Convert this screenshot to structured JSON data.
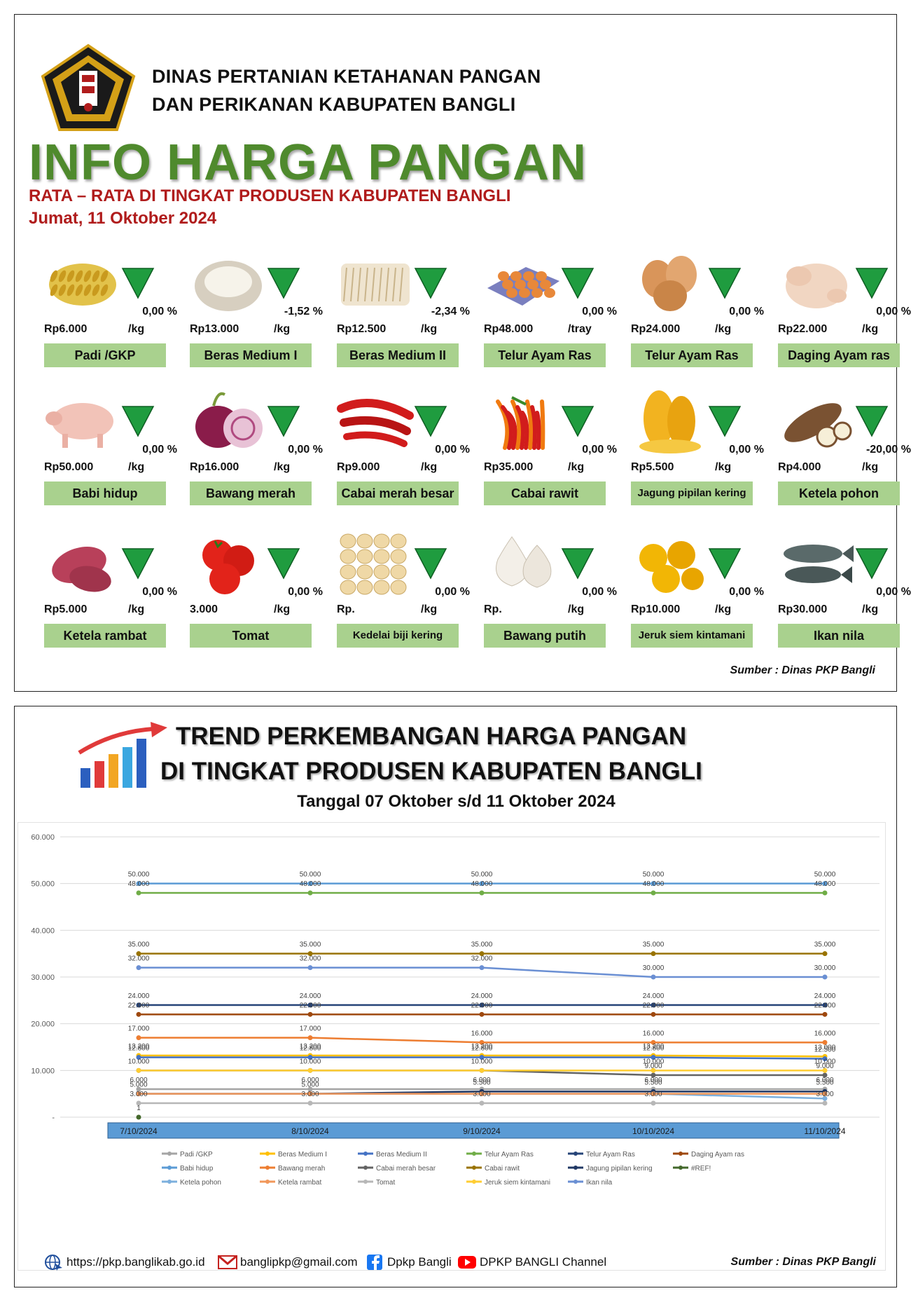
{
  "header": {
    "agency_line1": "DINAS PERTANIAN KETAHANAN PANGAN",
    "agency_line2": "DAN PERIKANAN KABUPATEN BANGLI",
    "title": "INFO HARGA PANGAN",
    "subtitle": "RATA – RATA DI TINGKAT PRODUSEN KABUPATEN BANGLI",
    "date": "Jumat, 11 Oktober 2024"
  },
  "colors": {
    "name_bg": "#a9d18e",
    "triangle": "#1f9c3f",
    "title_green": "#4f8a2d",
    "accent_red": "#b01c1c"
  },
  "items": [
    {
      "name": "Padi /GKP",
      "price": "Rp6.000",
      "unit": "/kg",
      "pct": "0,00  %",
      "icon": "grain-icon"
    },
    {
      "name": "Beras Medium I",
      "price": "Rp13.000",
      "unit": "/kg",
      "pct": "-1,52  %",
      "icon": "rice-icon"
    },
    {
      "name": "Beras Medium II",
      "price": "Rp12.500",
      "unit": "/kg",
      "pct": "-2,34  %",
      "icon": "rice-sack-icon"
    },
    {
      "name": "Telur Ayam Ras",
      "price": "Rp48.000",
      "unit": "/tray",
      "pct": "0,00  %",
      "icon": "egg-tray-icon"
    },
    {
      "name": "Telur Ayam Ras",
      "price": "Rp24.000",
      "unit": "/kg",
      "pct": "0,00  %",
      "icon": "eggs-icon"
    },
    {
      "name": "Daging Ayam ras",
      "price": "Rp22.000",
      "unit": "/kg",
      "pct": "0,00  %",
      "icon": "chicken-icon"
    },
    {
      "name": "Babi hidup",
      "price": "Rp50.000",
      "unit": "/kg",
      "pct": "0,00  %",
      "icon": "pig-icon"
    },
    {
      "name": "Bawang merah",
      "price": "Rp16.000",
      "unit": "/kg",
      "pct": "0,00  %",
      "icon": "shallot-icon"
    },
    {
      "name": "Cabai merah besar",
      "price": "Rp9.000",
      "unit": "/kg",
      "pct": "0,00  %",
      "icon": "red-chili-icon"
    },
    {
      "name": "Cabai rawit",
      "price": "Rp35.000",
      "unit": "/kg",
      "pct": "0,00  %",
      "icon": "bird-chili-icon"
    },
    {
      "name": "Jagung pipilan kering",
      "price": "Rp5.500",
      "unit": "/kg",
      "pct": "0,00  %",
      "icon": "corn-icon"
    },
    {
      "name": "Ketela pohon",
      "price": "Rp4.000",
      "unit": "/kg",
      "pct": "-20,00  %",
      "icon": "cassava-icon"
    },
    {
      "name": "Ketela rambat",
      "price": "Rp5.000",
      "unit": "/kg",
      "pct": "0,00  %",
      "icon": "sweet-potato-icon"
    },
    {
      "name": "Tomat",
      "price": "3.000",
      "unit": "/kg",
      "pct": "0,00  %",
      "icon": "tomato-icon"
    },
    {
      "name": "Kedelai biji kering",
      "price": "Rp.",
      "unit": "/kg",
      "pct": "0,00  %",
      "icon": "soybean-icon"
    },
    {
      "name": "Bawang putih",
      "price": "Rp.",
      "unit": "/kg",
      "pct": "0,00  %",
      "icon": "garlic-icon"
    },
    {
      "name": "Jeruk siem kintamani",
      "price": "Rp10.000",
      "unit": "/kg",
      "pct": "0,00  %",
      "icon": "orange-icon"
    },
    {
      "name": "Ikan nila",
      "price": "Rp30.000",
      "unit": "/kg",
      "pct": "0,00  %",
      "icon": "fish-icon"
    }
  ],
  "source": "Sumber : Dinas PKP Bangli",
  "trend": {
    "title_line1": "TREND PERKEMBANGAN HARGA PANGAN",
    "title_line2": "DI TINGKAT PRODUSEN KABUPATEN BANGLI",
    "date_range": "Tanggal 07 Oktober s/d 11 Oktober 2024"
  },
  "chart_data": {
    "type": "line",
    "x": [
      "7/10/2024",
      "8/10/2024",
      "9/10/2024",
      "10/10/2024",
      "11/10/2024"
    ],
    "ylim": [
      0,
      60000
    ],
    "yticks": [
      0,
      10000,
      20000,
      30000,
      40000,
      50000,
      60000
    ],
    "ytick_labels": [
      "-",
      "10.000",
      "20.000",
      "30.000",
      "40.000",
      "50.000",
      "60.000"
    ],
    "grid": true,
    "legend_position": "bottom",
    "series": [
      {
        "name": "Padi /GKP",
        "color": "#a5a5a5",
        "values": [
          6000,
          6000,
          6000,
          6000,
          6000
        ]
      },
      {
        "name": "Beras Medium I",
        "color": "#ffc000",
        "values": [
          13200,
          13200,
          13200,
          13200,
          13000
        ]
      },
      {
        "name": "Beras Medium II",
        "color": "#4472c4",
        "values": [
          12800,
          12800,
          12800,
          12800,
          12500
        ]
      },
      {
        "name": "Telur Ayam Ras",
        "color": "#70ad47",
        "values": [
          48000,
          48000,
          48000,
          48000,
          48000
        ]
      },
      {
        "name": "Telur Ayam Ras",
        "color": "#264478",
        "values": [
          24000,
          24000,
          24000,
          24000,
          24000
        ]
      },
      {
        "name": "Daging Ayam ras",
        "color": "#9e480e",
        "values": [
          22000,
          22000,
          22000,
          22000,
          22000
        ]
      },
      {
        "name": "Babi hidup",
        "color": "#5b9bd5",
        "values": [
          50000,
          50000,
          50000,
          50000,
          50000
        ]
      },
      {
        "name": "Bawang merah",
        "color": "#ed7d31",
        "values": [
          17000,
          17000,
          16000,
          16000,
          16000
        ]
      },
      {
        "name": "Cabai merah besar",
        "color": "#636363",
        "values": [
          10000,
          10000,
          10000,
          9000,
          9000
        ]
      },
      {
        "name": "Cabai rawit",
        "color": "#997300",
        "values": [
          35000,
          35000,
          35000,
          35000,
          35000
        ]
      },
      {
        "name": "Jagung pipilan kering",
        "color": "#203864",
        "values": [
          5000,
          5000,
          5500,
          5500,
          5500
        ]
      },
      {
        "name": "#REF!",
        "color": "#43682b",
        "values": [
          1,
          null,
          null,
          null,
          null
        ]
      },
      {
        "name": "Ketela pohon",
        "color": "#7cafdd",
        "values": [
          5000,
          5000,
          5000,
          5000,
          4000
        ]
      },
      {
        "name": "Ketela rambat",
        "color": "#f1975a",
        "values": [
          5000,
          5000,
          5000,
          5000,
          5000
        ]
      },
      {
        "name": "Tomat",
        "color": "#b7b7b7",
        "values": [
          3000,
          3000,
          3000,
          3000,
          3000
        ]
      },
      {
        "name": "Jeruk siem kintamani",
        "color": "#ffcd33",
        "values": [
          10000,
          10000,
          10000,
          10000,
          10000
        ]
      },
      {
        "name": "Ikan nila",
        "color": "#6a8fd3",
        "values": [
          32000,
          32000,
          32000,
          30000,
          30000
        ]
      }
    ],
    "data_labels": [
      [
        "50.000",
        "50.000",
        "50.000",
        "50.000",
        "50.000"
      ],
      [
        "48.000",
        "48.000",
        "48.000",
        "48.000",
        "48.000"
      ],
      [
        "35.000",
        "35.000",
        "35.000",
        "35.000",
        "35.000"
      ],
      [
        "32.000",
        "32.000",
        "32.000",
        "30.000",
        "30.000"
      ],
      [
        "24.000",
        "24.000",
        "24.000",
        "24.000",
        "24.000"
      ],
      [
        "22.000",
        "22.000",
        "22.000",
        "22.000",
        "22.000"
      ],
      [
        "17.000",
        "17.000",
        "16.000",
        "16.000",
        "16.000"
      ],
      [
        "13.200",
        "13.200",
        "13.200",
        "13.200",
        "13.000"
      ],
      [
        "12.800",
        "12.800",
        "12.800",
        "12.800",
        "12.500"
      ],
      [
        "10.000",
        "10.000",
        "10.000",
        "10.000",
        "10.000"
      ],
      [
        "",
        "",
        "",
        "9.000",
        "9.000"
      ],
      [
        "6.000",
        "6.000",
        "6.000",
        "6.000",
        "6.000"
      ],
      [
        "5.000",
        "5.000",
        "5.500",
        "5.500",
        "5.500"
      ],
      [
        "3.000",
        "3.000",
        "3.000",
        "3.000",
        "3.000"
      ],
      [
        "1",
        "",
        "",
        "",
        ""
      ]
    ]
  },
  "footer": {
    "website": "https://pkp.banglikab.go.id",
    "email": "banglipkp@gmail.com",
    "facebook": "Dpkp Bangli",
    "youtube": "DPKP BANGLI Channel",
    "source": "Sumber : Dinas PKP Bangli"
  }
}
